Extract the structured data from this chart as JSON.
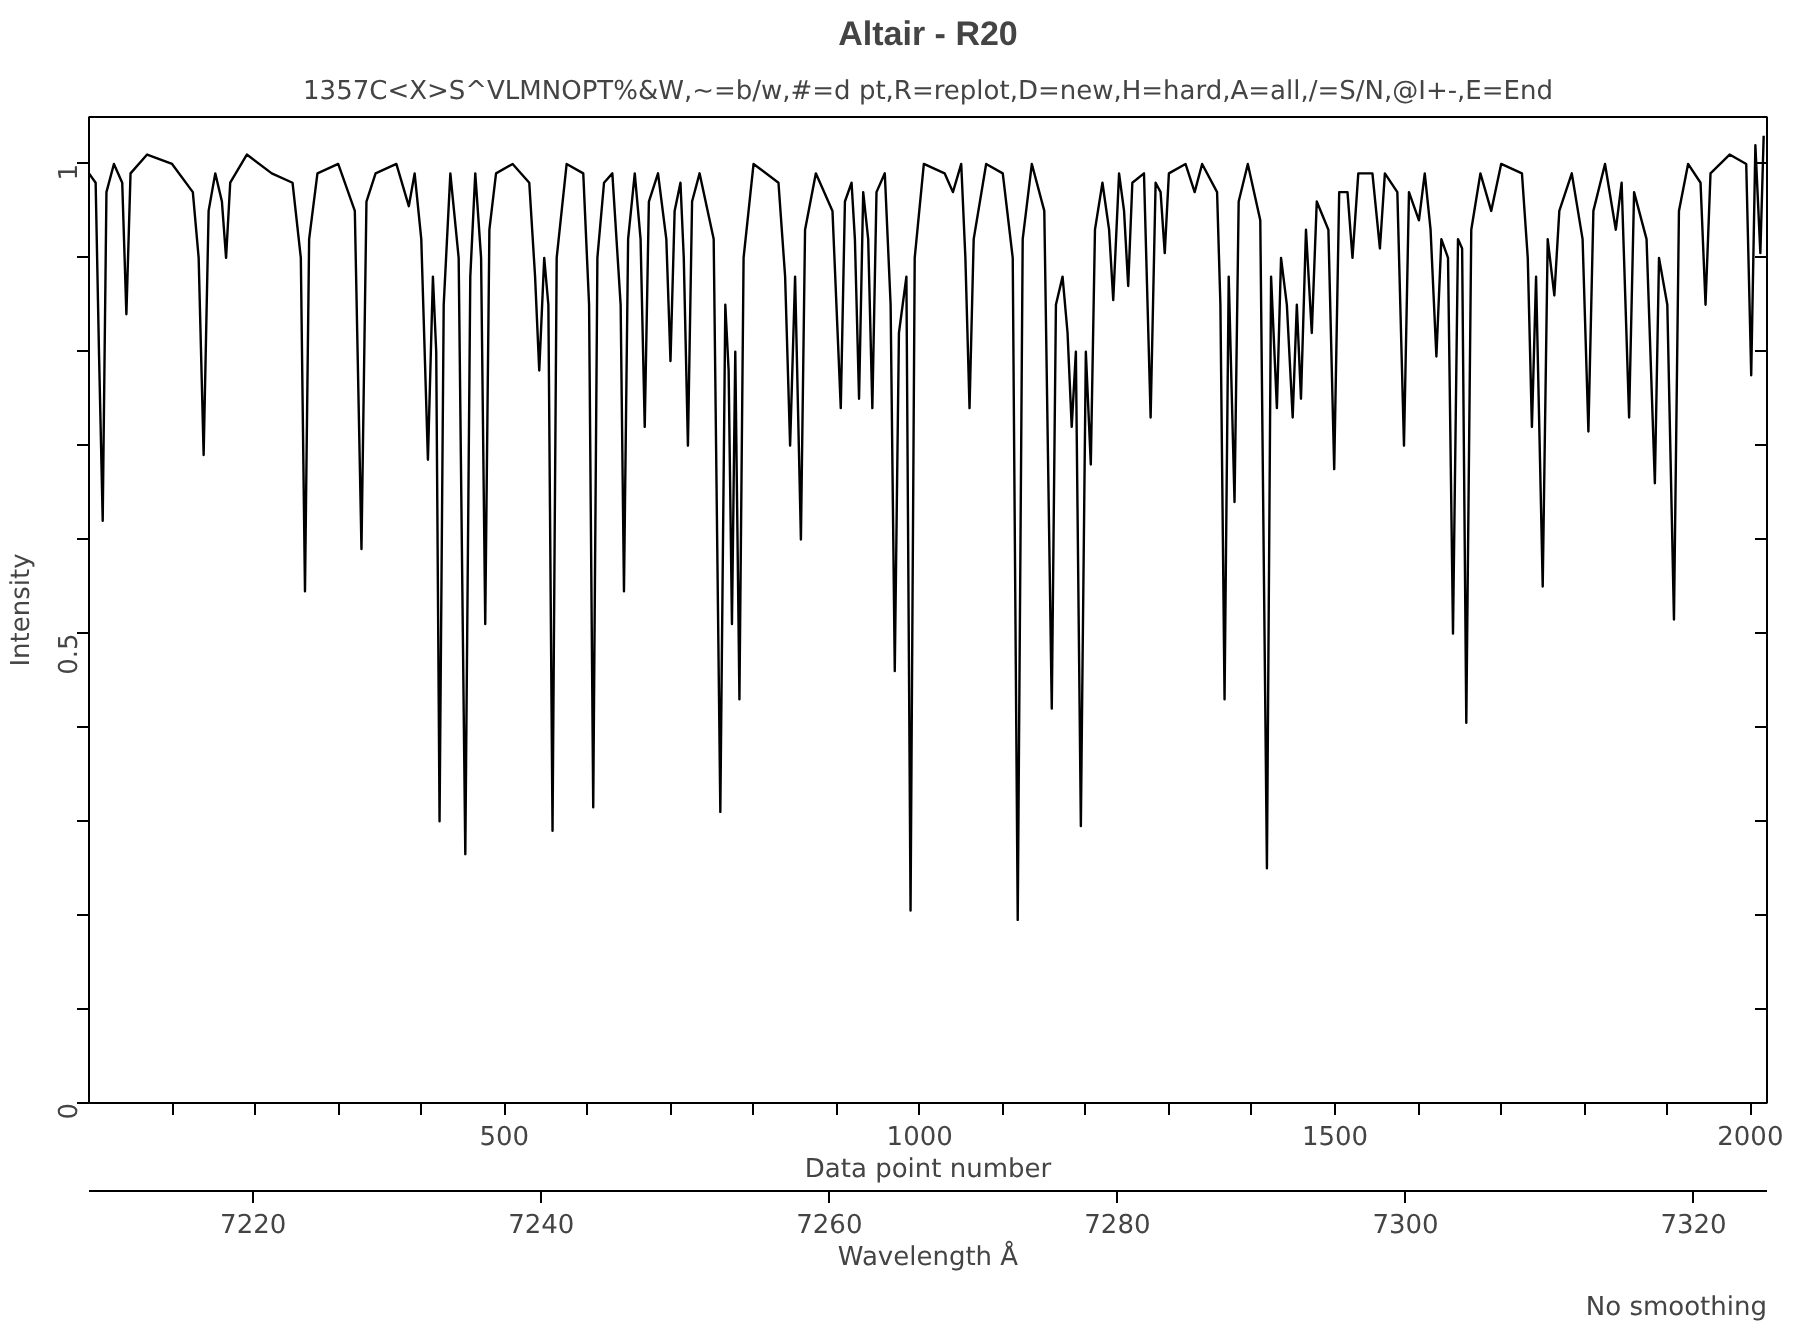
{
  "chart_data": {
    "type": "line",
    "title": "Altair - R20",
    "subtitle": "1357C<X>S^VLMNOPT%&W,~=b/w,#=d pt,R=replot,D=new,H=hard,A=all,/=S/N,@I+-,E=End",
    "xlabel": "Data point number",
    "ylabel": "Intensity",
    "x2label": "Wavelength Å",
    "annotations": [
      "No smoothing"
    ],
    "xlim": [
      0,
      2020
    ],
    "ylim": [
      0,
      1.05
    ],
    "xticks": [
      {
        "value": 100,
        "label": null
      },
      {
        "value": 200,
        "label": null
      },
      {
        "value": 300,
        "label": null
      },
      {
        "value": 400,
        "label": null
      },
      500,
      {
        "value": 600,
        "label": null
      },
      {
        "value": 700,
        "label": null
      },
      {
        "value": 800,
        "label": null
      },
      {
        "value": 900,
        "label": null
      },
      1000,
      {
        "value": 1100,
        "label": null
      },
      {
        "value": 1200,
        "label": null
      },
      {
        "value": 1300,
        "label": null
      },
      {
        "value": 1400,
        "label": null
      },
      1500,
      {
        "value": 1600,
        "label": null
      },
      {
        "value": 1700,
        "label": null
      },
      {
        "value": 1800,
        "label": null
      },
      {
        "value": 1900,
        "label": null
      },
      2000
    ],
    "yticks": [
      0,
      {
        "value": 0.1,
        "label": null
      },
      {
        "value": 0.2,
        "label": null
      },
      {
        "value": 0.3,
        "label": null
      },
      {
        "value": 0.4,
        "label": null
      },
      0.5,
      {
        "value": 0.6,
        "label": null
      },
      {
        "value": 0.7,
        "label": null
      },
      {
        "value": 0.8,
        "label": null
      },
      {
        "value": 0.9,
        "label": null
      },
      1
    ],
    "x2lim": [
      7208.6,
      7325.1
    ],
    "x2ticks": [
      7220,
      7240,
      7260,
      7280,
      7300,
      7320
    ],
    "grid": false,
    "x": [
      0,
      8,
      12,
      16.5,
      21,
      30,
      40,
      45,
      50,
      70,
      100,
      125,
      132,
      138,
      144,
      152,
      160,
      165,
      170,
      190,
      220,
      245,
      255,
      260,
      265,
      275,
      300,
      320,
      328,
      334,
      345,
      370,
      385,
      392,
      400,
      408,
      414,
      418,
      422,
      427,
      435,
      445,
      453,
      459,
      465,
      472,
      477,
      482,
      490,
      510,
      530,
      537,
      542,
      548,
      553,
      558,
      563,
      575,
      595,
      602,
      607,
      612,
      620,
      630,
      640,
      644,
      649,
      657,
      664,
      669,
      674,
      685,
      695,
      700,
      705,
      712,
      716,
      721,
      726,
      735,
      752,
      760,
      766,
      770,
      774,
      778,
      783,
      788,
      800,
      830,
      838,
      844,
      850,
      857,
      862,
      875,
      895,
      905,
      910,
      918,
      922,
      927,
      932,
      938,
      943,
      948,
      958,
      965,
      970,
      975,
      984,
      989,
      994,
      1005,
      1030,
      1040,
      1050,
      1055,
      1060,
      1065,
      1080,
      1100,
      1112,
      1118,
      1124,
      1135,
      1150,
      1159,
      1164,
      1172,
      1178,
      1183,
      1188,
      1194,
      1200,
      1206,
      1211,
      1220,
      1228,
      1233,
      1240,
      1246,
      1251,
      1256,
      1270,
      1278,
      1284,
      1290,
      1295,
      1300,
      1320,
      1331,
      1340,
      1358,
      1362,
      1367,
      1372,
      1379,
      1384,
      1395,
      1410,
      1418,
      1423,
      1430,
      1435,
      1442,
      1449,
      1454,
      1459,
      1465,
      1472,
      1478,
      1492,
      1499,
      1505,
      1515,
      1521,
      1528,
      1545,
      1554,
      1560,
      1575,
      1583,
      1589,
      1601,
      1608,
      1615,
      1622,
      1628,
      1636,
      1642,
      1648,
      1653,
      1658,
      1664,
      1675,
      1688,
      1700,
      1725,
      1732,
      1737,
      1742,
      1750,
      1756,
      1764,
      1770,
      1785,
      1798,
      1805,
      1811,
      1825,
      1838,
      1845,
      1854,
      1860,
      1875,
      1885,
      1890,
      1900,
      1908,
      1914,
      1925,
      1940,
      1946,
      1952,
      1975,
      1995,
      2001,
      2006,
      2012,
      2016
    ],
    "series": [
      {
        "color": "#000000",
        "values": [
          0.99,
          0.98,
          0.8,
          0.62,
          0.97,
          1.0,
          0.98,
          0.84,
          0.99,
          1.01,
          1.0,
          0.97,
          0.9,
          0.69,
          0.95,
          0.99,
          0.96,
          0.9,
          0.98,
          1.01,
          0.99,
          0.98,
          0.9,
          0.545,
          0.92,
          0.99,
          1.0,
          0.95,
          0.59,
          0.96,
          0.99,
          1.0,
          0.955,
          0.99,
          0.92,
          0.685,
          0.88,
          0.8,
          0.3,
          0.85,
          0.99,
          0.9,
          0.265,
          0.88,
          0.99,
          0.9,
          0.51,
          0.93,
          0.99,
          1.0,
          0.98,
          0.88,
          0.78,
          0.9,
          0.85,
          0.29,
          0.9,
          1.0,
          0.99,
          0.85,
          0.315,
          0.9,
          0.98,
          0.99,
          0.85,
          0.545,
          0.92,
          0.99,
          0.92,
          0.72,
          0.96,
          0.99,
          0.92,
          0.79,
          0.95,
          0.98,
          0.9,
          0.7,
          0.96,
          0.99,
          0.92,
          0.31,
          0.85,
          0.78,
          0.51,
          0.8,
          0.43,
          0.9,
          1.0,
          0.98,
          0.88,
          0.7,
          0.88,
          0.6,
          0.93,
          0.99,
          0.95,
          0.74,
          0.96,
          0.98,
          0.92,
          0.75,
          0.97,
          0.92,
          0.74,
          0.97,
          0.99,
          0.85,
          0.46,
          0.82,
          0.88,
          0.205,
          0.9,
          1.0,
          0.99,
          0.97,
          1.0,
          0.9,
          0.74,
          0.92,
          1.0,
          0.99,
          0.9,
          0.195,
          0.92,
          1.0,
          0.95,
          0.42,
          0.85,
          0.88,
          0.82,
          0.72,
          0.8,
          0.295,
          0.8,
          0.68,
          0.93,
          0.98,
          0.93,
          0.855,
          0.99,
          0.95,
          0.87,
          0.98,
          0.99,
          0.73,
          0.98,
          0.97,
          0.905,
          0.99,
          1.0,
          0.97,
          1.0,
          0.97,
          0.85,
          0.43,
          0.88,
          0.64,
          0.96,
          1.0,
          0.94,
          0.25,
          0.88,
          0.74,
          0.9,
          0.85,
          0.73,
          0.85,
          0.75,
          0.93,
          0.82,
          0.96,
          0.93,
          0.675,
          0.97,
          0.97,
          0.9,
          0.99,
          0.99,
          0.91,
          0.99,
          0.97,
          0.7,
          0.97,
          0.94,
          0.99,
          0.93,
          0.795,
          0.92,
          0.9,
          0.5,
          0.92,
          0.91,
          0.405,
          0.93,
          0.99,
          0.95,
          1.0,
          0.99,
          0.9,
          0.72,
          0.88,
          0.55,
          0.92,
          0.86,
          0.95,
          0.99,
          0.92,
          0.715,
          0.95,
          1.0,
          0.93,
          0.98,
          0.73,
          0.97,
          0.92,
          0.66,
          0.9,
          0.85,
          0.515,
          0.95,
          1.0,
          0.98,
          0.85,
          0.99,
          1.01,
          1.0,
          0.775,
          1.02,
          0.905,
          1.03
        ]
      }
    ]
  }
}
